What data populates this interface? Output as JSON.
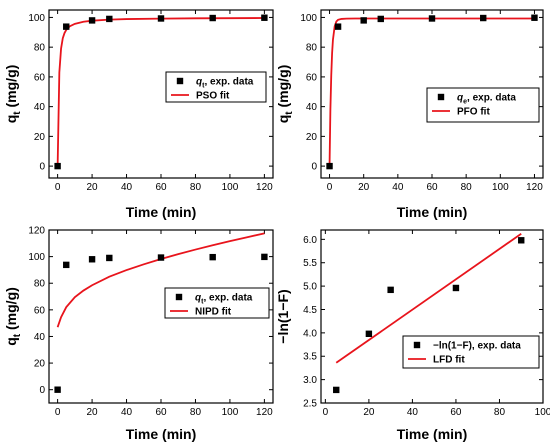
{
  "chart_data": [
    {
      "id": "pso",
      "type": "scatter",
      "xlabel": "Time (min)",
      "ylabel": "qt (mg/g)",
      "ylabel_main": "q",
      "ylabel_sub": "t",
      "ylabel_unit": " (mg/g)",
      "xlim": [
        -5,
        125
      ],
      "ylim": [
        -8,
        105
      ],
      "xticks": [
        0,
        20,
        40,
        60,
        80,
        100,
        120
      ],
      "yticks": [
        0,
        20,
        40,
        60,
        80,
        100
      ],
      "grid": false,
      "legend_position": "center-right",
      "series": [
        {
          "name": "qt, exp. data",
          "legend_main": "q",
          "legend_sub": "t",
          "legend_rest": ", exp. data",
          "kind": "points",
          "color": "#000000",
          "x": [
            0,
            5,
            20,
            30,
            60,
            90,
            120
          ],
          "y": [
            0,
            93.8,
            98.0,
            99.0,
            99.3,
            99.6,
            99.8
          ]
        },
        {
          "name": "PSO fit",
          "legend_main": "PSO fit",
          "legend_sub": "",
          "legend_rest": "",
          "kind": "curve",
          "color": "#e8141c",
          "x": [
            0,
            1,
            2,
            3,
            4,
            5,
            7,
            10,
            15,
            20,
            30,
            40,
            60,
            80,
            100,
            120
          ],
          "y": [
            0,
            63.0,
            79.0,
            86.0,
            89.5,
            91.6,
            94.0,
            95.7,
            97.1,
            97.8,
            98.5,
            98.9,
            99.2,
            99.4,
            99.5,
            99.6
          ]
        }
      ]
    },
    {
      "id": "pfo",
      "type": "scatter",
      "xlabel": "Time (min)",
      "ylabel": "qt (mg/g)",
      "ylabel_main": "q",
      "ylabel_sub": "t",
      "ylabel_unit": " (mg/g)",
      "xlim": [
        -5,
        125
      ],
      "ylim": [
        -8,
        105
      ],
      "xticks": [
        0,
        20,
        40,
        60,
        80,
        100,
        120
      ],
      "yticks": [
        0,
        20,
        40,
        60,
        80,
        100
      ],
      "grid": false,
      "legend_position": "center-right",
      "series": [
        {
          "name": "qe, exp. data",
          "legend_main": "q",
          "legend_sub": "e",
          "legend_rest": ", exp. data",
          "kind": "points",
          "color": "#000000",
          "x": [
            0,
            5,
            20,
            30,
            60,
            90,
            120
          ],
          "y": [
            0,
            93.8,
            98.0,
            99.0,
            99.3,
            99.6,
            99.8
          ]
        },
        {
          "name": "PFO fit",
          "legend_main": "PFO fit",
          "legend_sub": "",
          "legend_rest": "",
          "kind": "curve",
          "color": "#e8141c",
          "x": [
            0,
            0.5,
            1,
            1.5,
            2,
            3,
            4,
            5,
            7,
            10,
            15,
            20,
            40,
            60,
            80,
            100,
            120
          ],
          "y": [
            0,
            38.0,
            61.0,
            76.0,
            85.0,
            94.0,
            97.3,
            98.4,
            99.0,
            99.2,
            99.3,
            99.3,
            99.3,
            99.3,
            99.3,
            99.3,
            99.3
          ]
        }
      ]
    },
    {
      "id": "nipd",
      "type": "scatter",
      "xlabel": "Time (min)",
      "ylabel": "qt (mg/g)",
      "ylabel_main": "q",
      "ylabel_sub": "t",
      "ylabel_unit": " (mg/g)",
      "xlim": [
        -5,
        125
      ],
      "ylim": [
        -10,
        120
      ],
      "xticks": [
        0,
        20,
        40,
        60,
        80,
        100,
        120
      ],
      "yticks": [
        0,
        20,
        40,
        60,
        80,
        100,
        120
      ],
      "grid": false,
      "legend_position": "center-right",
      "series": [
        {
          "name": "qt, exp. data",
          "legend_main": "q",
          "legend_sub": "t",
          "legend_rest": ", exp. data",
          "kind": "points",
          "color": "#000000",
          "x": [
            0,
            5,
            20,
            30,
            60,
            90,
            120
          ],
          "y": [
            0,
            93.8,
            98.0,
            99.0,
            99.3,
            99.6,
            99.8
          ]
        },
        {
          "name": "NIPD fit",
          "legend_main": "NIPD fit",
          "legend_sub": "",
          "legend_rest": "",
          "kind": "curve",
          "color": "#e8141c",
          "x": [
            0,
            2,
            5,
            10,
            15,
            20,
            30,
            40,
            50,
            60,
            70,
            80,
            90,
            100,
            110,
            120
          ],
          "y": [
            47.0,
            54.5,
            62.0,
            69.5,
            74.5,
            78.5,
            84.9,
            89.9,
            94.2,
            98.2,
            101.9,
            105.3,
            108.5,
            111.6,
            114.6,
            117.5
          ]
        }
      ]
    },
    {
      "id": "lfd",
      "type": "scatter",
      "xlabel": "Time (min)",
      "ylabel": "−ln(1−F)",
      "ylabel_main": "−ln(1−F)",
      "ylabel_sub": "",
      "ylabel_unit": "",
      "xlim": [
        -2,
        100
      ],
      "ylim": [
        2.5,
        6.2
      ],
      "xticks": [
        0,
        20,
        40,
        60,
        80,
        100
      ],
      "yticks": [
        2.5,
        3.0,
        3.5,
        4.0,
        4.5,
        5.0,
        5.5,
        6.0
      ],
      "ytick_labels": [
        "2.5",
        "3.0",
        "3.5",
        "4.0",
        "4.5",
        "5.0",
        "5.5",
        "6.0"
      ],
      "grid": false,
      "legend_position": "bottom-right",
      "series": [
        {
          "name": "−ln(1−F), exp. data",
          "legend_main": "−ln(1−F), exp. data",
          "legend_sub": "",
          "legend_rest": "",
          "kind": "points",
          "color": "#000000",
          "x": [
            5,
            20,
            30,
            60,
            90
          ],
          "y": [
            2.78,
            3.98,
            4.92,
            4.96,
            5.98
          ]
        },
        {
          "name": "LFD fit",
          "legend_main": "LFD fit",
          "legend_sub": "",
          "legend_rest": "",
          "kind": "curve",
          "color": "#e8141c",
          "x": [
            5,
            90
          ],
          "y": [
            3.36,
            6.12
          ]
        }
      ]
    }
  ]
}
